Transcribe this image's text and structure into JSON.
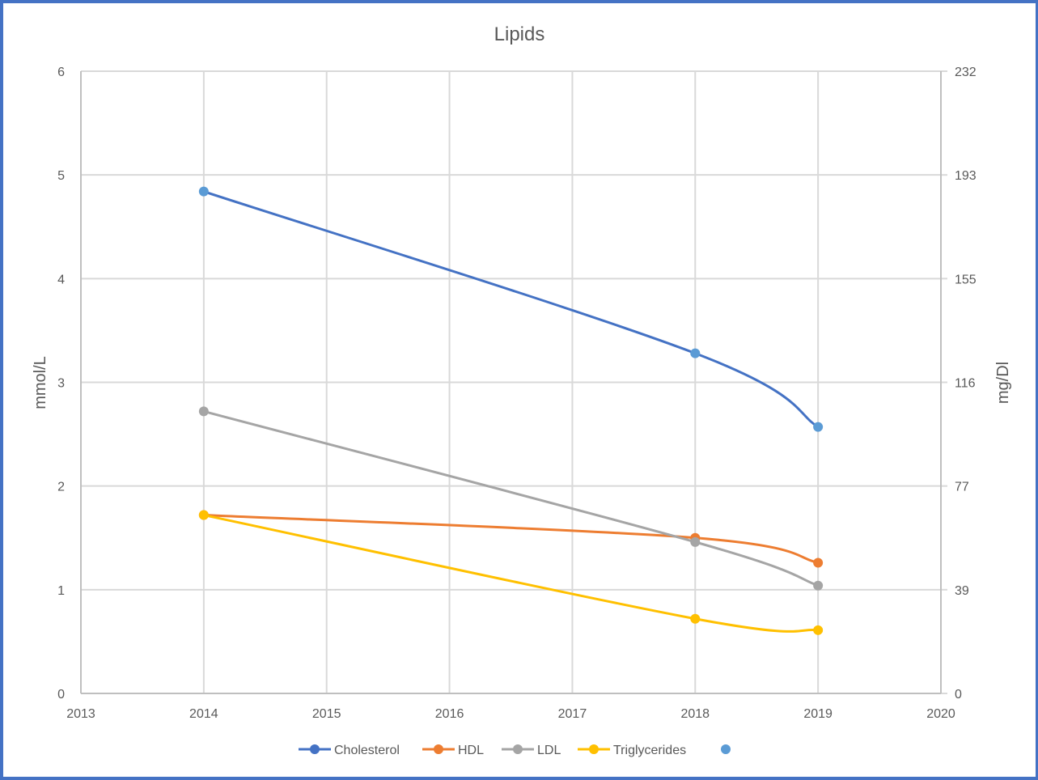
{
  "chart_data": {
    "type": "line",
    "title": "Lipids",
    "xlabel": "",
    "ylabel": "mmol/L",
    "y2label": "mg/Dl",
    "xlim": [
      2013,
      2020
    ],
    "ylim": [
      0,
      6
    ],
    "y2lim": [
      0,
      232
    ],
    "x_ticks": [
      "2013",
      "2014",
      "2015",
      "2016",
      "2017",
      "2018",
      "2019",
      "2020"
    ],
    "y_ticks": [
      "0",
      "1",
      "2",
      "3",
      "4",
      "5",
      "6"
    ],
    "y2_ticks": [
      "0",
      "39",
      "77",
      "116",
      "155",
      "193",
      "232"
    ],
    "grid": true,
    "legend_position": "bottom",
    "x": [
      2014,
      2018,
      2019
    ],
    "series": [
      {
        "name": "Cholesterol",
        "color": "#4472c4",
        "marker_color": "#5b9bd5",
        "values": [
          4.84,
          3.28,
          2.57
        ]
      },
      {
        "name": "HDL",
        "color": "#ed7d31",
        "marker_color": "#ed7d31",
        "values": [
          1.72,
          1.5,
          1.26
        ]
      },
      {
        "name": "LDL",
        "color": "#a5a5a5",
        "marker_color": "#a5a5a5",
        "values": [
          2.72,
          1.46,
          1.04
        ]
      },
      {
        "name": "Triglycerides",
        "color": "#ffc000",
        "marker_color": "#ffc000",
        "values": [
          1.72,
          0.72,
          0.61
        ]
      },
      {
        "name": "",
        "color": "#5b9bd5",
        "marker_color": "#5b9bd5",
        "values": []
      }
    ]
  },
  "legend": {
    "items": [
      "Cholesterol",
      "HDL",
      "LDL",
      "Triglycerides",
      ""
    ]
  },
  "colors": {
    "frame_border": "#4472c4",
    "grid": "#d9d9d9",
    "text": "#595959"
  }
}
